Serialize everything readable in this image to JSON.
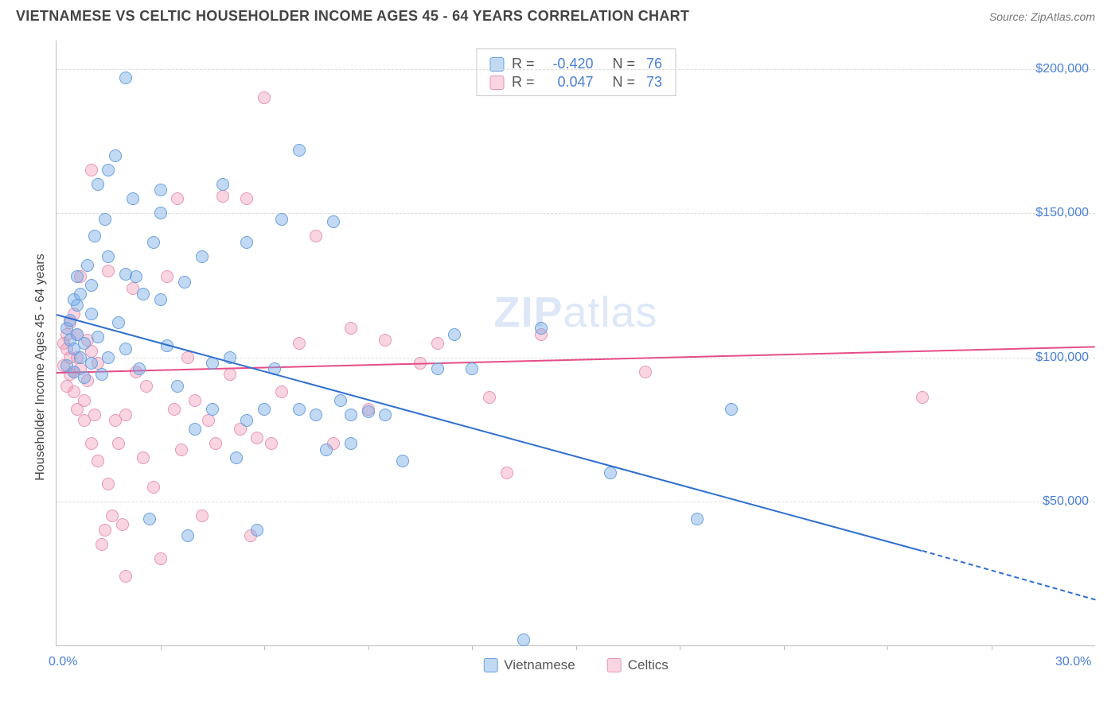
{
  "header": {
    "title": "VIETNAMESE VS CELTIC HOUSEHOLDER INCOME AGES 45 - 64 YEARS CORRELATION CHART",
    "source_prefix": "Source: ",
    "source_name": "ZipAtlas.com"
  },
  "axes": {
    "y_label": "Householder Income Ages 45 - 64 years",
    "x_min": 0.0,
    "x_max": 30.0,
    "y_min": 0,
    "y_max": 210000,
    "x_ticks": [
      0.0,
      30.0
    ],
    "x_tick_labels": [
      "0.0%",
      "30.0%"
    ],
    "x_minor_ticks": [
      3,
      6,
      9,
      12,
      15,
      18,
      21,
      24,
      27
    ],
    "y_gridlines": [
      50000,
      100000,
      150000,
      200000
    ],
    "y_tick_labels": [
      "$50,000",
      "$100,000",
      "$150,000",
      "$200,000"
    ],
    "grid_color": "#dddddd",
    "axis_color": "#bbbbbb",
    "tick_label_color": "#4a7fd8",
    "label_color": "#444444",
    "label_fontsize": 16
  },
  "watermark": {
    "text_bold": "ZIP",
    "text_light": "atlas",
    "color": "#4a7fd8",
    "opacity": 0.18,
    "fontsize": 54
  },
  "series": {
    "vietnamese": {
      "label": "Vietnamese",
      "color_fill": "rgba(120,170,230,0.45)",
      "color_stroke": "#6aa0de",
      "trend_color": "#2f6fd0",
      "trend_width": 2,
      "trend": {
        "x1": 0.0,
        "y1": 115000,
        "x2": 25.0,
        "y2": 33000,
        "extrap_x2": 30.0,
        "extrap_y2": 16000
      },
      "marker_radius": 8,
      "R": "-0.420",
      "N": "76",
      "points": [
        [
          0.3,
          110000
        ],
        [
          0.3,
          97000
        ],
        [
          0.4,
          113000
        ],
        [
          0.4,
          106000
        ],
        [
          0.5,
          120000
        ],
        [
          0.5,
          103000
        ],
        [
          0.5,
          95000
        ],
        [
          0.6,
          128000
        ],
        [
          0.6,
          108000
        ],
        [
          0.7,
          100000
        ],
        [
          0.7,
          122000
        ],
        [
          0.8,
          105000
        ],
        [
          0.8,
          93000
        ],
        [
          1.0,
          125000
        ],
        [
          1.0,
          115000
        ],
        [
          1.0,
          98000
        ],
        [
          1.2,
          160000
        ],
        [
          1.2,
          107000
        ],
        [
          1.3,
          94000
        ],
        [
          1.4,
          148000
        ],
        [
          1.5,
          135000
        ],
        [
          1.5,
          100000
        ],
        [
          1.7,
          170000
        ],
        [
          1.8,
          112000
        ],
        [
          2.0,
          197000
        ],
        [
          2.0,
          103000
        ],
        [
          2.2,
          155000
        ],
        [
          2.3,
          128000
        ],
        [
          2.4,
          96000
        ],
        [
          2.5,
          122000
        ],
        [
          2.7,
          44000
        ],
        [
          2.8,
          140000
        ],
        [
          3.0,
          150000
        ],
        [
          3.0,
          158000
        ],
        [
          3.2,
          104000
        ],
        [
          3.5,
          90000
        ],
        [
          3.7,
          126000
        ],
        [
          3.8,
          38000
        ],
        [
          4.0,
          75000
        ],
        [
          4.2,
          135000
        ],
        [
          4.5,
          98000
        ],
        [
          4.5,
          82000
        ],
        [
          5.0,
          100000
        ],
        [
          5.2,
          65000
        ],
        [
          5.5,
          78000
        ],
        [
          5.5,
          140000
        ],
        [
          5.8,
          40000
        ],
        [
          6.0,
          82000
        ],
        [
          6.3,
          96000
        ],
        [
          6.5,
          148000
        ],
        [
          7.0,
          172000
        ],
        [
          7.0,
          82000
        ],
        [
          7.5,
          80000
        ],
        [
          7.8,
          68000
        ],
        [
          8.0,
          147000
        ],
        [
          8.2,
          85000
        ],
        [
          8.5,
          80000
        ],
        [
          8.5,
          70000
        ],
        [
          9.0,
          81000
        ],
        [
          9.5,
          80000
        ],
        [
          10.0,
          64000
        ],
        [
          11.0,
          96000
        ],
        [
          11.5,
          108000
        ],
        [
          12.0,
          96000
        ],
        [
          13.5,
          2000
        ],
        [
          14.0,
          110000
        ],
        [
          16.0,
          60000
        ],
        [
          18.5,
          44000
        ],
        [
          19.5,
          82000
        ],
        [
          4.8,
          160000
        ],
        [
          3.0,
          120000
        ],
        [
          2.0,
          129000
        ],
        [
          1.5,
          165000
        ],
        [
          1.1,
          142000
        ],
        [
          0.9,
          132000
        ],
        [
          0.6,
          118000
        ]
      ]
    },
    "celtics": {
      "label": "Celtics",
      "color_fill": "rgba(240,150,180,0.40)",
      "color_stroke": "#e895b3",
      "trend_color": "#e64d88",
      "trend_width": 2,
      "trend": {
        "x1": 0.0,
        "y1": 95000,
        "x2": 30.0,
        "y2": 104000
      },
      "marker_radius": 8,
      "R": "0.047",
      "N": "73",
      "points": [
        [
          0.2,
          105000
        ],
        [
          0.2,
          97000
        ],
        [
          0.3,
          108000
        ],
        [
          0.3,
          90000
        ],
        [
          0.4,
          112000
        ],
        [
          0.4,
          100000
        ],
        [
          0.5,
          115000
        ],
        [
          0.5,
          88000
        ],
        [
          0.5,
          95000
        ],
        [
          0.6,
          108000
        ],
        [
          0.6,
          82000
        ],
        [
          0.7,
          128000
        ],
        [
          0.7,
          96000
        ],
        [
          0.8,
          78000
        ],
        [
          0.8,
          85000
        ],
        [
          0.9,
          92000
        ],
        [
          0.9,
          106000
        ],
        [
          1.0,
          165000
        ],
        [
          1.0,
          70000
        ],
        [
          1.1,
          80000
        ],
        [
          1.2,
          98000
        ],
        [
          1.2,
          64000
        ],
        [
          1.3,
          35000
        ],
        [
          1.4,
          40000
        ],
        [
          1.5,
          130000
        ],
        [
          1.5,
          56000
        ],
        [
          1.6,
          45000
        ],
        [
          1.7,
          78000
        ],
        [
          1.8,
          70000
        ],
        [
          1.9,
          42000
        ],
        [
          2.0,
          24000
        ],
        [
          2.0,
          80000
        ],
        [
          2.2,
          124000
        ],
        [
          2.3,
          95000
        ],
        [
          2.5,
          65000
        ],
        [
          2.6,
          90000
        ],
        [
          2.8,
          55000
        ],
        [
          3.0,
          30000
        ],
        [
          3.2,
          128000
        ],
        [
          3.4,
          82000
        ],
        [
          3.5,
          155000
        ],
        [
          3.6,
          68000
        ],
        [
          3.8,
          100000
        ],
        [
          4.0,
          85000
        ],
        [
          4.2,
          45000
        ],
        [
          4.4,
          78000
        ],
        [
          4.6,
          70000
        ],
        [
          4.8,
          156000
        ],
        [
          5.0,
          94000
        ],
        [
          5.3,
          75000
        ],
        [
          5.5,
          155000
        ],
        [
          5.6,
          38000
        ],
        [
          5.8,
          72000
        ],
        [
          6.0,
          190000
        ],
        [
          6.2,
          70000
        ],
        [
          6.5,
          88000
        ],
        [
          7.0,
          105000
        ],
        [
          7.5,
          142000
        ],
        [
          8.0,
          70000
        ],
        [
          8.5,
          110000
        ],
        [
          9.0,
          82000
        ],
        [
          9.5,
          106000
        ],
        [
          10.5,
          98000
        ],
        [
          11.0,
          105000
        ],
        [
          12.5,
          86000
        ],
        [
          13.0,
          60000
        ],
        [
          14.0,
          108000
        ],
        [
          17.0,
          95000
        ],
        [
          25.0,
          86000
        ],
        [
          1.0,
          102000
        ],
        [
          0.6,
          100000
        ],
        [
          0.4,
          94000
        ],
        [
          0.3,
          103000
        ]
      ]
    }
  },
  "legend_stats": {
    "rows": [
      {
        "series": "vietnamese",
        "R_label": "R =",
        "N_label": "N ="
      },
      {
        "series": "celtics",
        "R_label": "R =",
        "N_label": "N ="
      }
    ]
  },
  "legend_bottom": {
    "items": [
      {
        "series": "vietnamese"
      },
      {
        "series": "celtics"
      }
    ]
  },
  "background_color": "#ffffff"
}
